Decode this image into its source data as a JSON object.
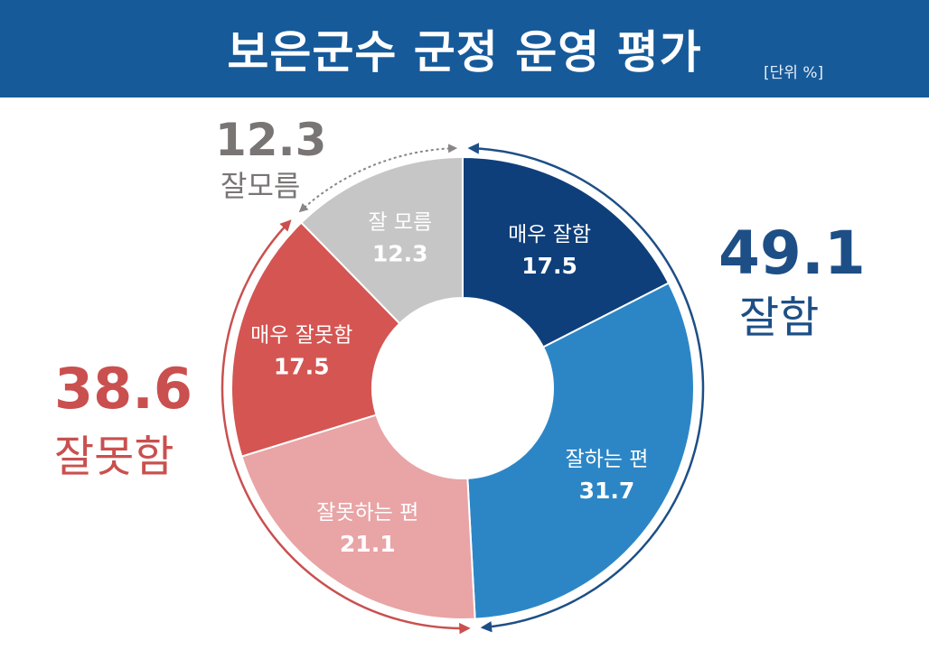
{
  "header": {
    "title": "보은군수 군정 운영 평가",
    "unit": "[단위 %]"
  },
  "groups": {
    "good": {
      "value": "49.1",
      "label": "잘함"
    },
    "bad": {
      "value": "38.6",
      "label": "잘못함"
    },
    "dont_know": {
      "value": "12.3",
      "label": "잘모름"
    }
  },
  "chart_data": {
    "type": "pie",
    "title": "보은군수 군정 운영 평가",
    "unit": "단위 %",
    "donut": true,
    "slices": [
      {
        "label": "매우 잘함",
        "value": 17.5,
        "color": "#0e3f7a",
        "text_color": "#ffffff"
      },
      {
        "label": "잘하는 편",
        "value": 31.7,
        "color": "#2c86c6",
        "text_color": "#ffffff"
      },
      {
        "label": "잘못하는 편",
        "value": 21.1,
        "color": "#e9a4a6",
        "text_color": "#ffffff"
      },
      {
        "label": "매우 잘못함",
        "value": 17.5,
        "color": "#d45552",
        "text_color": "#ffffff"
      },
      {
        "label": "잘 모름",
        "value": 12.3,
        "color": "#c6c6c7",
        "text_color": "#ffffff"
      }
    ],
    "group_totals": [
      {
        "label": "잘함",
        "value": 49.1,
        "color": "#1d4f86"
      },
      {
        "label": "잘못함",
        "value": 38.6,
        "color": "#c9504f"
      },
      {
        "label": "잘모름",
        "value": 12.3,
        "color": "#8a8686"
      }
    ]
  }
}
